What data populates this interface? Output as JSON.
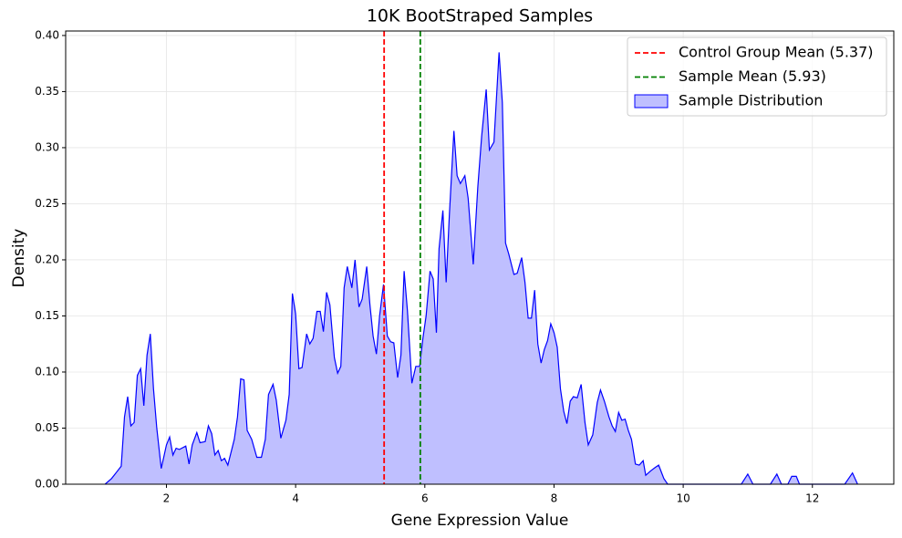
{
  "chart_data": {
    "type": "area",
    "title": "10K BootStraped Samples",
    "x_label": "Gene Expression Value",
    "y_label": "Density",
    "xlim": [
      0.44,
      13.26
    ],
    "ylim": [
      0,
      0.404
    ],
    "xticks": [
      2,
      4,
      6,
      8,
      10,
      12
    ],
    "yticks": [
      {
        "value": 0,
        "label": "0.00"
      },
      {
        "value": 0.05,
        "label": "0.05"
      },
      {
        "value": 0.1,
        "label": "0.10"
      },
      {
        "value": 0.15,
        "label": "0.15"
      },
      {
        "value": 0.2,
        "label": "0.20"
      },
      {
        "value": 0.25,
        "label": "0.25"
      },
      {
        "value": 0.3,
        "label": "0.30"
      },
      {
        "value": 0.35,
        "label": "0.35"
      },
      {
        "value": 0.4,
        "label": "0.40"
      }
    ],
    "grid": true,
    "legend": "upper right",
    "vlines": [
      {
        "name": "Control Group Mean (5.37)",
        "x": 5.37,
        "color": "#ff0000"
      },
      {
        "name": "Sample Mean (5.93)",
        "x": 5.93,
        "color": "#008000"
      }
    ],
    "series": [
      {
        "name": "Sample Distribution",
        "color": "#0000ff",
        "fill": "#bfbfff",
        "x": [
          1.05,
          1.15,
          1.3,
          1.35,
          1.4,
          1.45,
          1.5,
          1.55,
          1.6,
          1.65,
          1.7,
          1.75,
          1.8,
          1.85,
          1.92,
          2.0,
          2.05,
          2.1,
          2.15,
          2.2,
          2.3,
          2.35,
          2.4,
          2.47,
          2.52,
          2.6,
          2.65,
          2.7,
          2.75,
          2.8,
          2.85,
          2.9,
          2.95,
          3.05,
          3.1,
          3.15,
          3.2,
          3.25,
          3.32,
          3.4,
          3.47,
          3.53,
          3.58,
          3.65,
          3.7,
          3.77,
          3.85,
          3.9,
          3.95,
          4.0,
          4.05,
          4.1,
          4.17,
          4.22,
          4.27,
          4.33,
          4.38,
          4.43,
          4.48,
          4.53,
          4.6,
          4.65,
          4.7,
          4.75,
          4.8,
          4.87,
          4.92,
          4.98,
          5.03,
          5.1,
          5.15,
          5.2,
          5.25,
          5.3,
          5.36,
          5.42,
          5.47,
          5.52,
          5.58,
          5.63,
          5.68,
          5.73,
          5.8,
          5.86,
          5.92,
          5.97,
          6.02,
          6.08,
          6.13,
          6.18,
          6.22,
          6.28,
          6.33,
          6.38,
          6.45,
          6.5,
          6.55,
          6.62,
          6.67,
          6.75,
          6.82,
          6.88,
          6.95,
          7.0,
          7.07,
          7.15,
          7.2,
          7.25,
          7.3,
          7.38,
          7.43,
          7.5,
          7.55,
          7.6,
          7.65,
          7.7,
          7.75,
          7.8,
          7.85,
          7.9,
          7.95,
          8.0,
          8.05,
          8.1,
          8.15,
          8.2,
          8.25,
          8.3,
          8.36,
          8.42,
          8.48,
          8.53,
          8.6,
          8.67,
          8.72,
          8.78,
          8.85,
          8.9,
          8.95,
          9.0,
          9.05,
          9.1,
          9.15,
          9.2,
          9.26,
          9.32,
          9.38,
          9.42,
          9.5,
          9.57,
          9.62,
          9.7,
          9.76,
          10.5,
          10.9,
          11.0,
          11.08,
          11.35,
          11.45,
          11.52,
          11.62,
          11.68,
          11.75,
          11.8,
          12.5,
          12.62,
          12.7
        ],
        "values": [
          0,
          0.005,
          0.016,
          0.06,
          0.078,
          0.052,
          0.055,
          0.097,
          0.103,
          0.07,
          0.115,
          0.134,
          0.085,
          0.05,
          0.014,
          0.035,
          0.042,
          0.026,
          0.032,
          0.031,
          0.034,
          0.018,
          0.035,
          0.046,
          0.037,
          0.038,
          0.052,
          0.045,
          0.026,
          0.03,
          0.021,
          0.023,
          0.017,
          0.04,
          0.06,
          0.094,
          0.093,
          0.048,
          0.04,
          0.024,
          0.024,
          0.04,
          0.08,
          0.089,
          0.075,
          0.041,
          0.057,
          0.08,
          0.17,
          0.152,
          0.103,
          0.104,
          0.134,
          0.125,
          0.13,
          0.154,
          0.154,
          0.136,
          0.171,
          0.16,
          0.113,
          0.099,
          0.105,
          0.175,
          0.194,
          0.175,
          0.2,
          0.158,
          0.165,
          0.194,
          0.16,
          0.132,
          0.116,
          0.15,
          0.178,
          0.132,
          0.127,
          0.126,
          0.095,
          0.115,
          0.19,
          0.155,
          0.09,
          0.105,
          0.105,
          0.13,
          0.15,
          0.19,
          0.183,
          0.135,
          0.21,
          0.244,
          0.18,
          0.24,
          0.315,
          0.275,
          0.268,
          0.275,
          0.255,
          0.196,
          0.265,
          0.31,
          0.352,
          0.298,
          0.305,
          0.385,
          0.34,
          0.215,
          0.205,
          0.187,
          0.188,
          0.202,
          0.18,
          0.148,
          0.148,
          0.173,
          0.125,
          0.108,
          0.12,
          0.128,
          0.143,
          0.135,
          0.122,
          0.085,
          0.065,
          0.054,
          0.074,
          0.078,
          0.077,
          0.089,
          0.055,
          0.035,
          0.044,
          0.073,
          0.084,
          0.074,
          0.06,
          0.052,
          0.047,
          0.064,
          0.057,
          0.058,
          0.048,
          0.04,
          0.018,
          0.017,
          0.021,
          0.008,
          0.012,
          0.015,
          0.017,
          0.005,
          0,
          0,
          0,
          0.009,
          0,
          0,
          0.009,
          0,
          0,
          0.007,
          0.007,
          0,
          0,
          0.01,
          0
        ]
      }
    ]
  }
}
